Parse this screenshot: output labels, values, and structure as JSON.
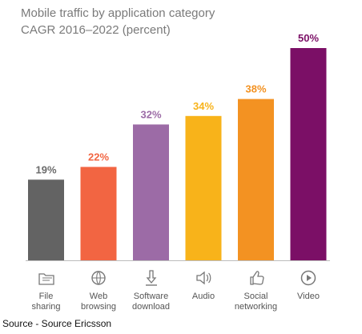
{
  "chart_data": {
    "type": "bar",
    "title": "Mobile traffic by application category",
    "subtitle": "CAGR 2016–2022 (percent)",
    "xlabel": "",
    "ylabel": "",
    "ylim": [
      0,
      50
    ],
    "grid": false,
    "legend": "none",
    "categories": [
      "File\nsharing",
      "Web\nbrowsing",
      "Software\ndownload",
      "Audio",
      "Social\nnetworking",
      "Video"
    ],
    "values": [
      19,
      22,
      32,
      34,
      38,
      50
    ],
    "value_labels": [
      "19%",
      "22%",
      "32%",
      "34%",
      "38%",
      "50%"
    ],
    "bar_colors": [
      "#636363",
      "#f26542",
      "#9c6ba6",
      "#f8b31a",
      "#f39222",
      "#7b0f66"
    ],
    "label_colors": [
      "#6b6b6b",
      "#f26542",
      "#9c6ba6",
      "#f8b31a",
      "#f39222",
      "#7b0f66"
    ],
    "icons": [
      "file-sharing-icon",
      "web-browsing-icon",
      "software-download-icon",
      "audio-icon",
      "social-networking-icon",
      "video-icon"
    ]
  },
  "source": "Source - Source Ericsson"
}
